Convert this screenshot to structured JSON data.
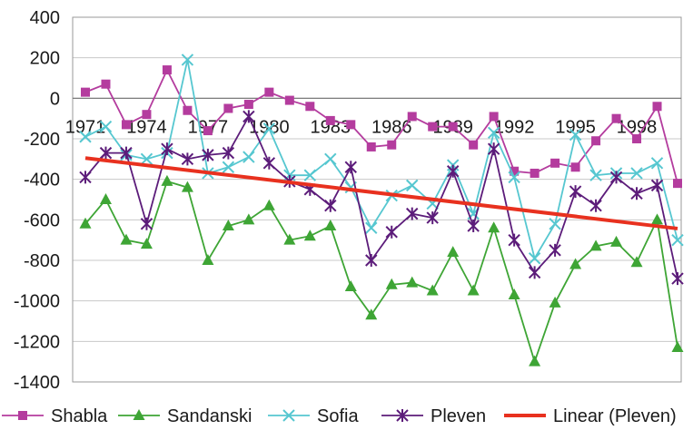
{
  "chart_data": {
    "type": "line",
    "title": "",
    "xlabel": "",
    "ylabel": "",
    "ylim": [
      -1400,
      400
    ],
    "yticks": [
      400,
      200,
      0,
      -200,
      -400,
      -600,
      -800,
      -1000,
      -1200,
      -1400
    ],
    "x": [
      1971,
      1972,
      1973,
      1974,
      1975,
      1976,
      1977,
      1978,
      1979,
      1980,
      1981,
      1982,
      1983,
      1984,
      1985,
      1986,
      1987,
      1988,
      1989,
      1990,
      1991,
      1992,
      1993,
      1994,
      1995,
      1996,
      1997,
      1998,
      1999,
      2000
    ],
    "xtick_labels": [
      "1971",
      "1974",
      "1977",
      "1980",
      "1983",
      "1986",
      "1989",
      "1992",
      "1995",
      "1998"
    ],
    "xtick_years": [
      1971,
      1974,
      1977,
      1980,
      1983,
      1986,
      1989,
      1992,
      1995,
      1998
    ],
    "grid": true,
    "legend_position": "bottom",
    "series": [
      {
        "name": "Shabla",
        "color": "#b43c9e",
        "marker": "square",
        "values": [
          30,
          70,
          -130,
          -80,
          140,
          -60,
          -160,
          -50,
          -30,
          30,
          -10,
          -40,
          -110,
          -130,
          -240,
          -230,
          -90,
          -140,
          -140,
          -230,
          -90,
          -360,
          -370,
          -320,
          -340,
          -210,
          -100,
          -200,
          -40,
          -420
        ]
      },
      {
        "name": "Sandanski",
        "color": "#3ea535",
        "marker": "triangle",
        "values": [
          -620,
          -500,
          -700,
          -720,
          -410,
          -440,
          -800,
          -630,
          -600,
          -530,
          -700,
          -680,
          -630,
          -930,
          -1070,
          -920,
          -910,
          -950,
          -760,
          -950,
          -640,
          -970,
          -1300,
          -1010,
          -820,
          -730,
          -710,
          -810,
          -600,
          -1230
        ]
      },
      {
        "name": "Sofia",
        "color": "#56c7d0",
        "marker": "x",
        "values": [
          -190,
          -140,
          -280,
          -300,
          -270,
          190,
          -370,
          -340,
          -290,
          -150,
          -380,
          -380,
          -300,
          -440,
          -640,
          -480,
          -430,
          -520,
          -330,
          -570,
          -170,
          -390,
          -790,
          -620,
          -180,
          -380,
          -370,
          -370,
          -320,
          -700
        ]
      },
      {
        "name": "Pleven",
        "color": "#5c1c7a",
        "marker": "star",
        "values": [
          -390,
          -270,
          -270,
          -620,
          -250,
          -300,
          -280,
          -270,
          -90,
          -320,
          -410,
          -450,
          -530,
          -340,
          -800,
          -660,
          -570,
          -590,
          -360,
          -630,
          -250,
          -700,
          -860,
          -750,
          -460,
          -530,
          -390,
          -470,
          -430,
          -890
        ]
      },
      {
        "name": "Linear (Pleven)",
        "color": "#e8311f",
        "marker": "none",
        "trend": true,
        "values": [
          -295,
          -307,
          -319,
          -331,
          -343,
          -355,
          -367,
          -379,
          -391,
          -403,
          -415,
          -427,
          -439,
          -451,
          -463,
          -475,
          -487,
          -499,
          -511,
          -523,
          -535,
          -547,
          -559,
          -571,
          -583,
          -595,
          -607,
          -619,
          -631,
          -643
        ]
      }
    ]
  }
}
